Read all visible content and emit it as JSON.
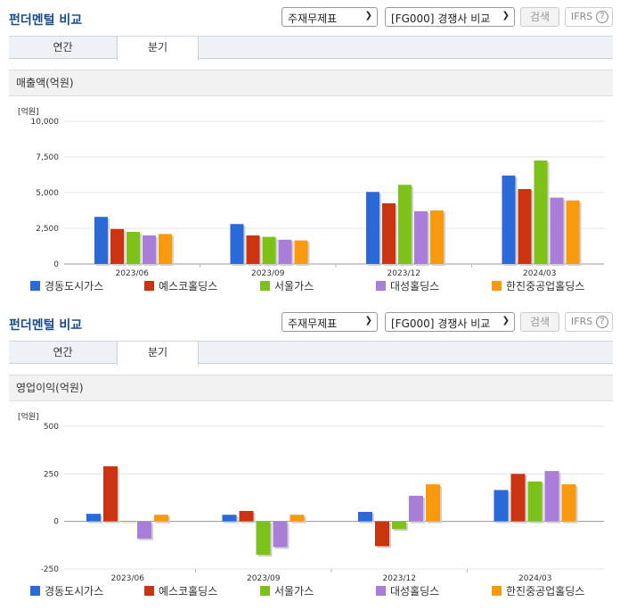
{
  "panels": [
    {
      "title": "펀더멘털 비교",
      "select1": "주재무제표",
      "select2": "[FG000] 경쟁사 비교",
      "search": "검색",
      "ifrs": "IFRS",
      "ifrs_help": "?",
      "tabs": [
        "연간",
        "분기"
      ],
      "active_tab": 1,
      "section_title": "매출액(억원)",
      "unit": "[억원]"
    },
    {
      "title": "펀더멘털 비교",
      "select1": "주재무제표",
      "select2": "[FG000] 경쟁사 비교",
      "search": "검색",
      "ifrs": "IFRS",
      "ifrs_help": "?",
      "tabs": [
        "연간",
        "분기"
      ],
      "active_tab": 1,
      "section_title": "영업이익(억원)",
      "unit": "[억원]"
    }
  ],
  "colors": [
    "#2a6ad8",
    "#cc3311",
    "#7cc218",
    "#a97ed9",
    "#f99a0e"
  ],
  "chart_data": [
    {
      "type": "bar",
      "title": "매출액(억원)",
      "ylabel": "[억원]",
      "categories": [
        "2023/06",
        "2023/09",
        "2023/12",
        "2024/03"
      ],
      "ylim": [
        0,
        10000
      ],
      "yticks": [
        "10,000",
        "7,500",
        "5,000",
        "2,500",
        "0"
      ],
      "grid": true,
      "legend_position": "bottom",
      "series": [
        {
          "name": "경동도시가스",
          "values": [
            3300,
            2800,
            5050,
            6200
          ]
        },
        {
          "name": "예스코홀딩스",
          "values": [
            2450,
            2000,
            4250,
            5250
          ]
        },
        {
          "name": "서울가스",
          "values": [
            2250,
            1900,
            5550,
            7250
          ]
        },
        {
          "name": "대성홀딩스",
          "values": [
            2000,
            1700,
            3700,
            4650
          ]
        },
        {
          "name": "한진중공업홀딩스",
          "values": [
            2100,
            1650,
            3750,
            4450
          ]
        }
      ]
    },
    {
      "type": "bar",
      "title": "영업이익(억원)",
      "ylabel": "[억원]",
      "categories": [
        "2023/06",
        "2023/09",
        "2023/12",
        "2024/03"
      ],
      "ylim": [
        -250,
        500
      ],
      "yticks": [
        "500",
        "250",
        "0",
        "-250"
      ],
      "grid": true,
      "legend_position": "bottom",
      "series": [
        {
          "name": "경동도시가스",
          "values": [
            40,
            35,
            50,
            165
          ]
        },
        {
          "name": "예스코홀딩스",
          "values": [
            290,
            55,
            -130,
            250
          ]
        },
        {
          "name": "서울가스",
          "values": [
            0,
            -175,
            -40,
            210
          ]
        },
        {
          "name": "대성홀딩스",
          "values": [
            -90,
            -135,
            135,
            265
          ]
        },
        {
          "name": "한진중공업홀딩스",
          "values": [
            35,
            35,
            195,
            195
          ]
        }
      ]
    }
  ]
}
